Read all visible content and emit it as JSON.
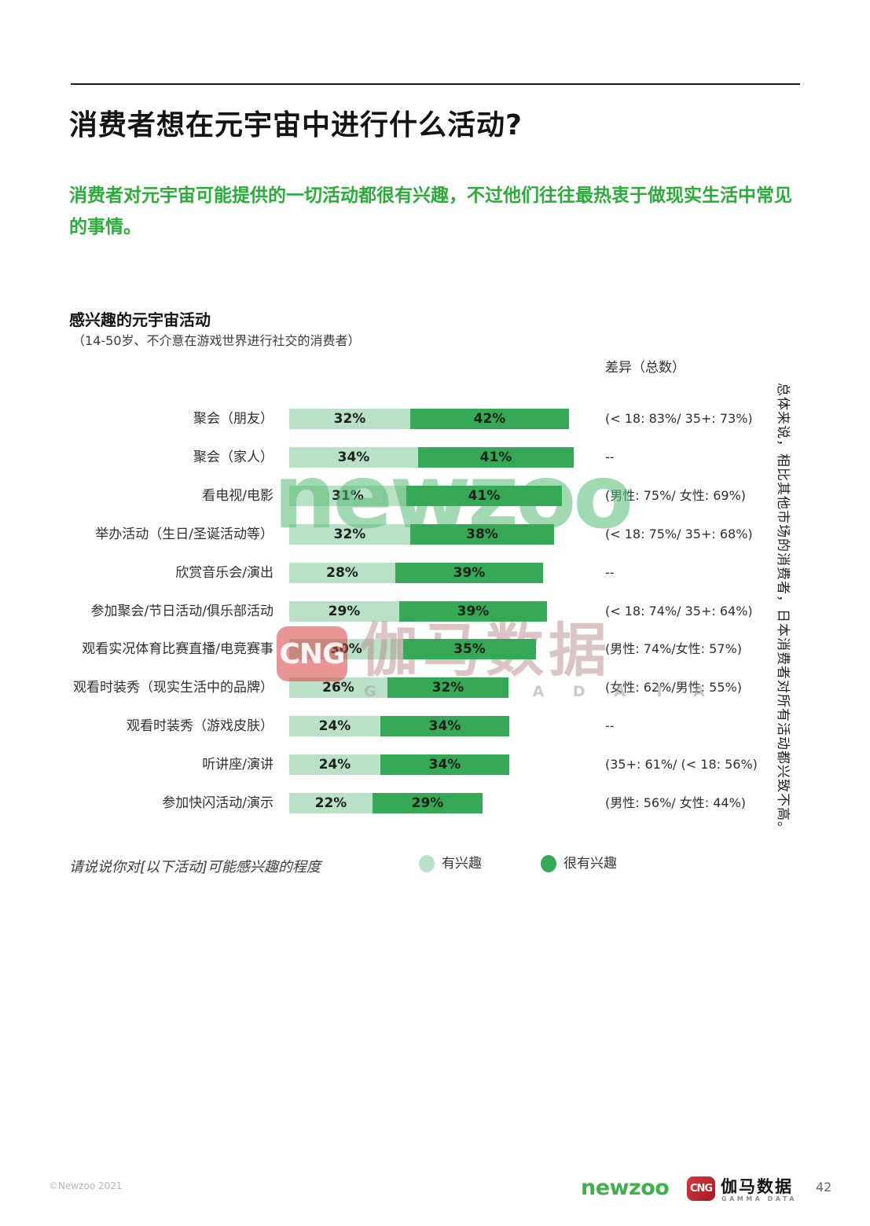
{
  "page": {
    "title": "消费者想在元宇宙中进行什么活动?",
    "intro": "消费者对元宇宙可能提供的一切活动都很有兴趣，不过他们往往最热衷于做现实生活中常见的事情。"
  },
  "chart": {
    "title": "感兴趣的元宇宙活动",
    "subtitle": "（14-50岁、不介意在游戏世界进行社交的消费者）",
    "diff_column_header": "差异（总数）",
    "question": "请说说你对[以下活动]可能感兴趣的程度",
    "side_note": "总体来说，相比其他市场的消费者，日本消费者对所有活动都兴致不高。",
    "legend": [
      {
        "label": "有兴趣"
      },
      {
        "label": "很有兴趣"
      }
    ]
  },
  "chart_data": {
    "type": "bar",
    "orientation": "horizontal",
    "stacked": true,
    "unit": "%",
    "categories": [
      "聚会（朋友）",
      "聚会（家人）",
      "看电视/电影",
      "举办活动（生日/圣诞活动等）",
      "欣赏音乐会/演出",
      "参加聚会/节日活动/俱乐部活动",
      "观看实况体育比赛直播/电竞赛事",
      "观看时装秀（现实生活中的品牌）",
      "观看时装秀（游戏皮肤）",
      "听讲座/演讲",
      "参加快闪活动/演示"
    ],
    "series": [
      {
        "name": "有兴趣",
        "values": [
          32,
          34,
          31,
          32,
          28,
          29,
          30,
          26,
          24,
          24,
          22
        ]
      },
      {
        "name": "很有兴趣",
        "values": [
          42,
          41,
          41,
          38,
          39,
          39,
          35,
          32,
          34,
          34,
          29
        ]
      }
    ],
    "diffs": [
      "(< 18: 83%/ 35+: 73%)",
      "--",
      "(男性: 75%/ 女性: 69%)",
      "(< 18: 75%/ 35+: 68%)",
      "--",
      "(< 18: 74%/ 35+: 64%)",
      "(男性: 74%/女性: 57%)",
      "(女性: 62%/男性: 55%)",
      "--",
      "(35+: 61%/ (< 18: 56%)",
      "(男性: 56%/ 女性: 44%)"
    ],
    "xlim": [
      0,
      100
    ],
    "grid": false,
    "legend_position": "bottom"
  },
  "colors": {
    "accent_text_green": "#2aad38",
    "brand_green": "#3cb24a",
    "bar_light_green": "#b8e1c5",
    "bar_dark_green": "#36a957",
    "cng_red": "#c6262c"
  },
  "watermarks": {
    "newzoo": "newzoo",
    "cng_box": "CNG",
    "cng_cn": "伽马数据",
    "cng_en": "G A M M A   D A T A"
  },
  "footer": {
    "copyright": "©Newzoo 2021",
    "newzoo_logo": "newzoo",
    "cng_logo": "CNG",
    "gamma_cn": "伽马数据",
    "gamma_en": "GAMMA DATA",
    "page_number": "42"
  }
}
